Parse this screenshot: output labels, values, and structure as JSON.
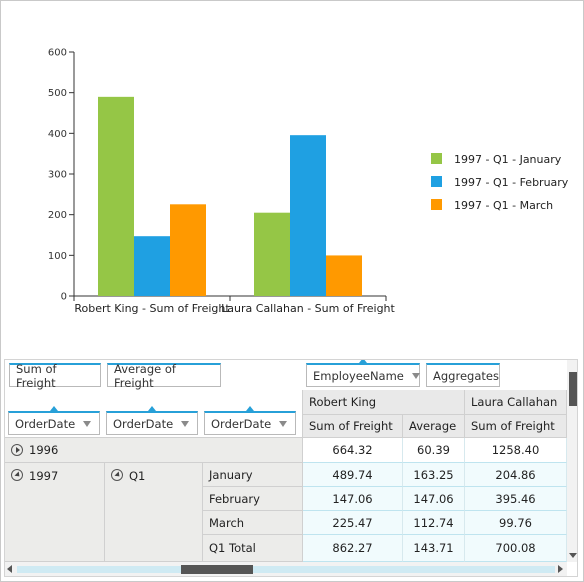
{
  "chart_data": {
    "type": "bar",
    "categories": [
      "Robert King - Sum of Freight",
      "Laura Callahan - Sum of Freight"
    ],
    "series": [
      {
        "name": "1997 - Q1 - January",
        "values": [
          489.74,
          204.86
        ],
        "color": "#95c646"
      },
      {
        "name": "1997 - Q1 - February",
        "values": [
          147.06,
          395.46
        ],
        "color": "#1fa0e2"
      },
      {
        "name": "1997 - Q1 - March",
        "values": [
          225.47,
          99.76
        ],
        "color": "#ff9900"
      }
    ],
    "ylim": [
      0,
      600
    ],
    "yticks": [
      "0",
      "100",
      "200",
      "300",
      "400",
      "500",
      "600"
    ],
    "legend": "right",
    "grid": false
  },
  "pivot": {
    "data_fields": [
      "Sum of Freight",
      "Average of Freight"
    ],
    "column_fields": [
      "EmployeeName",
      "Aggregates"
    ],
    "row_fields": [
      "OrderDate",
      "OrderDate",
      "OrderDate"
    ],
    "employees": [
      "Robert King",
      "Laura Callahan"
    ],
    "measures": [
      "Sum of Freight",
      "Average",
      "Sum of Freight"
    ],
    "rows": [
      {
        "year": "1996",
        "quarter": "",
        "month": "",
        "values": [
          "664.32",
          "60.39",
          "1258.40"
        ]
      },
      {
        "year": "1997",
        "quarter": "Q1",
        "month": "January",
        "values": [
          "489.74",
          "163.25",
          "204.86"
        ]
      },
      {
        "year": "",
        "quarter": "",
        "month": "February",
        "values": [
          "147.06",
          "147.06",
          "395.46"
        ]
      },
      {
        "year": "",
        "quarter": "",
        "month": "March",
        "values": [
          "225.47",
          "112.74",
          "99.76"
        ]
      },
      {
        "year": "",
        "quarter": "",
        "month": "Q1 Total",
        "values": [
          "862.27",
          "143.71",
          "700.08"
        ]
      }
    ]
  },
  "icons": {
    "expand": "expander-collapsed-icon",
    "collapse": "expander-expanded-icon",
    "filter": "filter-icon",
    "sort": "sort-asc-icon"
  }
}
